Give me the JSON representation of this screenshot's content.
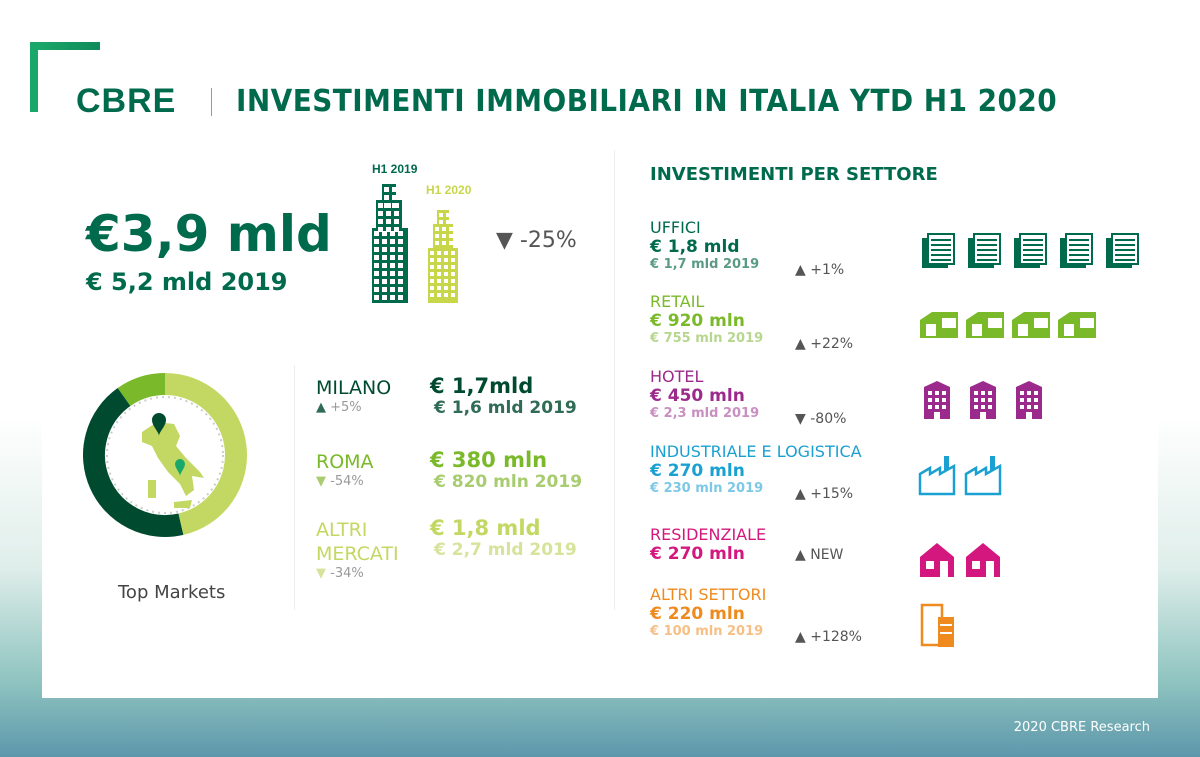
{
  "header": {
    "logo": "CBRE",
    "title": "INVESTIMENTI IMMOBILIARI IN ITALIA YTD H1 2020"
  },
  "summary": {
    "total": "€3,9 mld",
    "previous": "€ 5,2 mld 2019",
    "label_2019": "H1 2019",
    "label_2020": "H1 2020",
    "change": "-25%",
    "change_direction": "down"
  },
  "markets": {
    "caption": "Top Markets",
    "items": [
      {
        "name": "MILANO",
        "value": "€ 1,7mld",
        "previous": "€ 1,6 mld 2019",
        "change": "+5%",
        "direction": "up",
        "color": "#004b30",
        "share": 1.7
      },
      {
        "name": "ROMA",
        "value": "€ 380 mln",
        "previous": "€ 820 mln 2019",
        "change": "-54%",
        "direction": "down",
        "color": "#7ab929",
        "share": 0.38
      },
      {
        "name": "ALTRI MERCATI",
        "value": "€ 1,8 mld",
        "previous": "€ 2,7 mld 2019",
        "change": "-34%",
        "direction": "down",
        "color": "#c3d862",
        "share": 1.8
      }
    ]
  },
  "sectors": {
    "title": "INVESTIMENTI PER SETTORE",
    "items": [
      {
        "name": "UFFICI",
        "value": "€ 1,8 mld",
        "previous": "€ 1,7 mld 2019",
        "change": "+1%",
        "direction": "up",
        "color": "#006a4d",
        "light": "#5a9a86",
        "icon": "office-building-icon",
        "count": 5
      },
      {
        "name": "RETAIL",
        "value": "€ 920 mln",
        "previous": "€ 755 mln 2019",
        "change": "+22%",
        "direction": "up",
        "color": "#7ab929",
        "light": "#b7d690",
        "icon": "shop-icon",
        "count": 4
      },
      {
        "name": "HOTEL",
        "value": "€ 450 mln",
        "previous": "€ 2,3 mld 2019",
        "change": "-80%",
        "direction": "down",
        "color": "#9c2a8c",
        "light": "#c88fc0",
        "icon": "hotel-icon",
        "count": 3
      },
      {
        "name": "INDUSTRIALE E LOGISTICA",
        "value": "€ 270 mln",
        "previous": "€ 230 mln 2019",
        "change": "+15%",
        "direction": "up",
        "color": "#1ba0d2",
        "light": "#7cc8e6",
        "icon": "factory-icon",
        "count": 2
      },
      {
        "name": "RESIDENZIALE",
        "value": "€ 270 mln",
        "previous": "",
        "change": "NEW",
        "direction": "up",
        "color": "#d4177f",
        "light": "#e47db5",
        "icon": "house-icon",
        "count": 2
      },
      {
        "name": "ALTRI SETTORI",
        "value": "€ 220 mln",
        "previous": "€ 100 mln 2019",
        "change": "+128%",
        "direction": "up",
        "color": "#ee8a1e",
        "light": "#f6bf85",
        "icon": "mixed-buildings-icon",
        "count": 1
      }
    ]
  },
  "footer": "2020 CBRE Research"
}
